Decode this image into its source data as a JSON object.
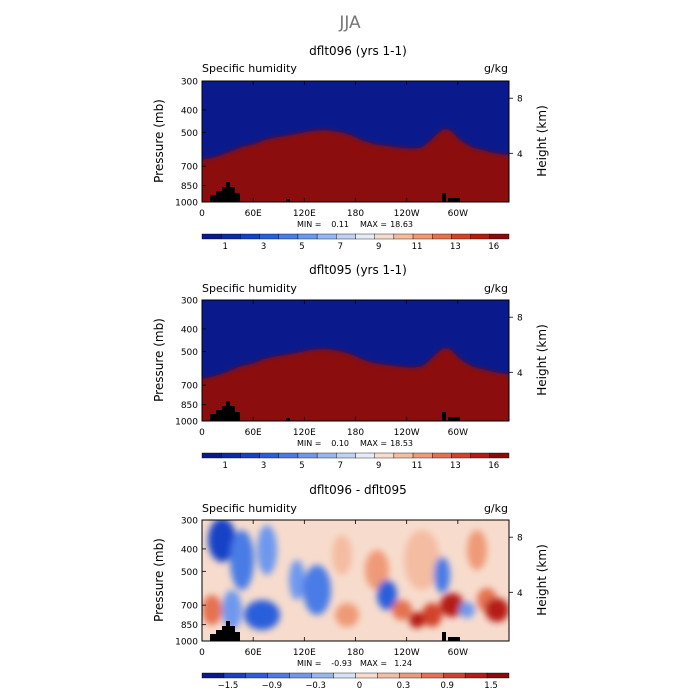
{
  "figure_title": "JJA",
  "x_ticks": [
    "0",
    "60E",
    "120E",
    "180",
    "120W",
    "60W"
  ],
  "y_ticks_left": [
    "300",
    "400",
    "500",
    "700",
    "850",
    "1000"
  ],
  "y_ticks_right": [
    "8",
    "4"
  ],
  "left_axis_label": "Pressure (mb)",
  "right_axis_label": "Height (km)",
  "panels": [
    {
      "title": "dflt096 (yrs 1-1)",
      "left_label": "Specific humidity",
      "units": "g/kg",
      "min_label": "MIN =",
      "min_value": "0.11",
      "max_label": "MAX =",
      "max_value": "18.63",
      "colorbar_labels": [
        "1",
        "3",
        "5",
        "7",
        "9",
        "11",
        "13",
        "16"
      ]
    },
    {
      "title": "dflt095 (yrs 1-1)",
      "left_label": "Specific humidity",
      "units": "g/kg",
      "min_label": "MIN =",
      "min_value": "0.10",
      "max_label": "MAX =",
      "max_value": "18.53",
      "colorbar_labels": [
        "1",
        "3",
        "5",
        "7",
        "9",
        "11",
        "13",
        "16"
      ]
    },
    {
      "title": "dflt096 - dflt095",
      "left_label": "Specific humidity",
      "units": "g/kg",
      "min_label": "MIN =",
      "min_value": "-0.93",
      "max_label": "MAX =",
      "max_value": "1.24",
      "colorbar_labels": [
        "−1.5",
        "−0.9",
        "−0.3",
        "0",
        "0.3",
        "0.9",
        "1.5"
      ]
    }
  ],
  "chart_data": [
    {
      "type": "heatmap",
      "title": "dflt096 (yrs 1-1)",
      "subtitle": "Specific humidity",
      "units": "g/kg",
      "xlabel": "",
      "ylabel": "Pressure (mb)",
      "ylabel_right": "Height (km)",
      "x_ticks": [
        "0",
        "60E",
        "120E",
        "180",
        "120W",
        "60W"
      ],
      "y_ticks": [
        300,
        400,
        500,
        700,
        850,
        1000
      ],
      "y_log_scale": true,
      "min": 0.11,
      "max": 18.63,
      "levels": [
        1,
        2,
        3,
        4,
        5,
        6,
        7,
        8,
        9,
        10,
        11,
        12,
        13,
        14,
        16
      ],
      "colors": [
        "#0a1a8c",
        "#0d2ba8",
        "#1742c6",
        "#2a5fdb",
        "#4a7be6",
        "#6e98ee",
        "#97b6f3",
        "#bfd2f6",
        "#e6ecf5",
        "#f7dccd",
        "#f4bca1",
        "#ef9a77",
        "#e5714f",
        "#d2432a",
        "#b51d14",
        "#8b0a0a"
      ]
    },
    {
      "type": "heatmap",
      "title": "dflt095 (yrs 1-1)",
      "subtitle": "Specific humidity",
      "units": "g/kg",
      "xlabel": "",
      "ylabel": "Pressure (mb)",
      "ylabel_right": "Height (km)",
      "x_ticks": [
        "0",
        "60E",
        "120E",
        "180",
        "120W",
        "60W"
      ],
      "y_ticks": [
        300,
        400,
        500,
        700,
        850,
        1000
      ],
      "y_log_scale": true,
      "min": 0.1,
      "max": 18.53,
      "levels": [
        1,
        2,
        3,
        4,
        5,
        6,
        7,
        8,
        9,
        10,
        11,
        12,
        13,
        14,
        16
      ],
      "colors": [
        "#0a1a8c",
        "#0d2ba8",
        "#1742c6",
        "#2a5fdb",
        "#4a7be6",
        "#6e98ee",
        "#97b6f3",
        "#bfd2f6",
        "#e6ecf5",
        "#f7dccd",
        "#f4bca1",
        "#ef9a77",
        "#e5714f",
        "#d2432a",
        "#b51d14",
        "#8b0a0a"
      ]
    },
    {
      "type": "heatmap",
      "title": "dflt096 - dflt095",
      "subtitle": "Specific humidity",
      "units": "g/kg",
      "xlabel": "",
      "ylabel": "Pressure (mb)",
      "ylabel_right": "Height (km)",
      "x_ticks": [
        "0",
        "60E",
        "120E",
        "180",
        "120W",
        "60W"
      ],
      "y_ticks": [
        300,
        400,
        500,
        700,
        850,
        1000
      ],
      "y_log_scale": true,
      "min": -0.93,
      "max": 1.24,
      "levels": [
        -1.5,
        -1.2,
        -0.9,
        -0.6,
        -0.3,
        -0.1,
        0,
        0.1,
        0.3,
        0.6,
        0.9,
        1.2,
        1.5
      ],
      "colors": [
        "#0a1a8c",
        "#1742c6",
        "#2a5fdb",
        "#4a7be6",
        "#6e98ee",
        "#97b6f3",
        "#d6e2f6",
        "#f7dccd",
        "#f4bca1",
        "#ef9a77",
        "#e5714f",
        "#d2432a",
        "#b51d14",
        "#8b0a0a"
      ]
    }
  ]
}
